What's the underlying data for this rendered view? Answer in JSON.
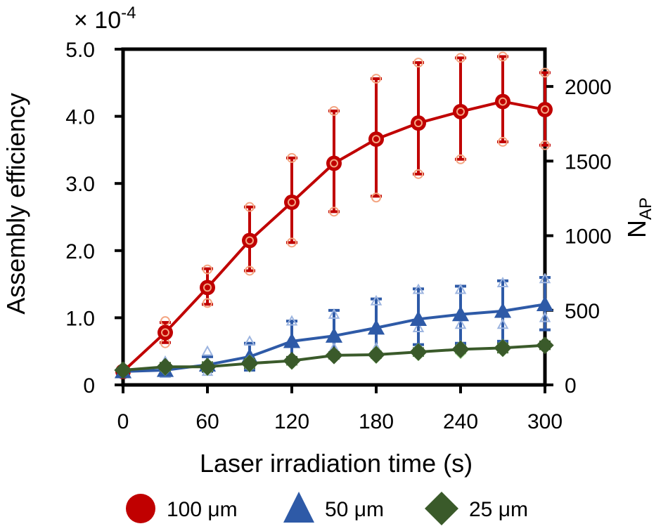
{
  "chart_data": {
    "type": "line",
    "multiplier": {
      "base": "× 10",
      "exponent": "-4"
    },
    "xlabel": "Laser irradiation time (s)",
    "ylabel": "Assembly efficiency",
    "y2label": {
      "main": "N",
      "sub": "AP"
    },
    "xlim": [
      0,
      300
    ],
    "ylim": [
      0,
      5
    ],
    "y2lim": [
      0,
      2250
    ],
    "x_ticks": [
      0,
      60,
      120,
      180,
      240,
      300
    ],
    "x_tick_labels": [
      "0",
      "60",
      "120",
      "180",
      "240",
      "300"
    ],
    "y_ticks": [
      0,
      1,
      2,
      3,
      4,
      5
    ],
    "y_tick_labels": [
      "0",
      "1.0",
      "2.0",
      "3.0",
      "4.0",
      "5.0"
    ],
    "y2_ticks": [
      0,
      500,
      1000,
      1500,
      2000
    ],
    "y2_tick_labels": [
      "0",
      "500",
      "1000",
      "1500",
      "2000"
    ],
    "x": [
      0,
      30,
      60,
      90,
      120,
      150,
      180,
      210,
      240,
      270,
      300
    ],
    "series": [
      {
        "name": "100 μm",
        "color": "#c00000",
        "marker": "circle",
        "values": [
          0.2,
          0.78,
          1.45,
          2.15,
          2.72,
          3.3,
          3.66,
          3.9,
          4.07,
          4.22,
          4.1
        ],
        "err_low": [
          0.0,
          0.15,
          0.25,
          0.45,
          0.6,
          0.72,
          0.85,
          0.76,
          0.71,
          0.6,
          0.53
        ],
        "err_high": [
          0.0,
          0.15,
          0.28,
          0.5,
          0.66,
          0.78,
          0.9,
          0.9,
          0.8,
          0.67,
          0.55
        ],
        "samples": [
          [
            0.2,
            0.2
          ],
          [
            0.95,
            0.62
          ],
          [
            1.72,
            1.22
          ],
          [
            2.65,
            1.7
          ],
          [
            3.38,
            2.12
          ],
          [
            4.08,
            2.58
          ],
          [
            4.56,
            2.79
          ],
          [
            4.8,
            3.14
          ],
          [
            4.87,
            3.36
          ],
          [
            4.89,
            3.62
          ],
          [
            4.65,
            3.57
          ]
        ]
      },
      {
        "name": "50 μm",
        "color": "#2e5aa7",
        "marker": "triangle",
        "values": [
          0.2,
          0.22,
          0.3,
          0.42,
          0.65,
          0.73,
          0.85,
          0.98,
          1.05,
          1.1,
          1.2
        ],
        "err_low": [
          0.0,
          0.05,
          0.1,
          0.2,
          0.25,
          0.25,
          0.4,
          0.38,
          0.43,
          0.45,
          0.38
        ],
        "err_high": [
          0.0,
          0.05,
          0.12,
          0.2,
          0.3,
          0.38,
          0.43,
          0.45,
          0.42,
          0.45,
          0.4
        ],
        "samples": [
          [
            0.25,
            0.2
          ],
          [
            0.35,
            0.17
          ],
          [
            0.5,
            0.2
          ],
          [
            0.65,
            0.3
          ],
          [
            0.95,
            0.4
          ],
          [
            1.05,
            0.55
          ],
          [
            1.25,
            0.55
          ],
          [
            1.42,
            0.85
          ],
          [
            1.42,
            0.9
          ],
          [
            1.52,
            0.9
          ],
          [
            1.58,
            1.0
          ]
        ]
      },
      {
        "name": "25 μm",
        "color": "#3a5a2a",
        "marker": "diamond",
        "values": [
          0.22,
          0.27,
          0.27,
          0.32,
          0.36,
          0.44,
          0.45,
          0.49,
          0.53,
          0.55,
          0.59
        ],
        "err_low": [
          0.0,
          0.05,
          0.06,
          0.06,
          0.05,
          0.04,
          0.04,
          0.05,
          0.05,
          0.06,
          0.05
        ],
        "err_high": [
          0.0,
          0.05,
          0.06,
          0.06,
          0.05,
          0.04,
          0.04,
          0.05,
          0.05,
          0.06,
          0.05
        ],
        "samples": [
          [
            0.25,
            0.2
          ],
          [
            0.3,
            0.22
          ],
          [
            0.32,
            0.22
          ],
          [
            0.37,
            0.27
          ],
          [
            0.4,
            0.31
          ],
          [
            0.47,
            0.4
          ],
          [
            0.5,
            0.4
          ],
          [
            0.54,
            0.44
          ],
          [
            0.58,
            0.47
          ],
          [
            0.6,
            0.5
          ],
          [
            0.62,
            0.55
          ]
        ]
      }
    ],
    "legend_position": "bottom",
    "grid": false
  }
}
